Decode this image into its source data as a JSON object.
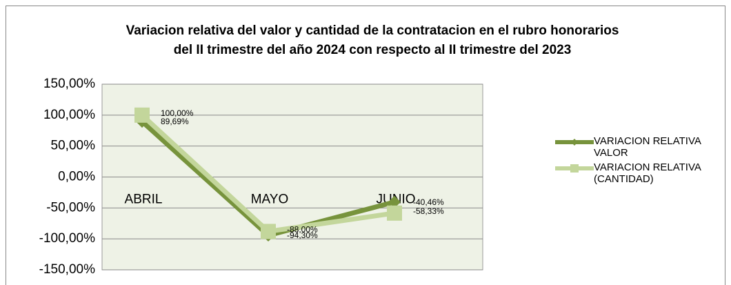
{
  "chart_data": {
    "type": "line",
    "title": [
      "Variacion relativa del valor y cantidad de la contratacion en el rubro honorarios",
      "del II trimestre del año 2024 con respecto al II trimestre del 2023"
    ],
    "categories": [
      "ABRIL",
      "MAYO",
      "JUNIO"
    ],
    "series": [
      {
        "name": "VARIACION RELATIVA VALOR",
        "color": "#77933c",
        "marker": "diamond",
        "values": [
          89.69,
          -94.3,
          -40.46
        ],
        "value_labels": [
          "89,69%",
          "-94,30%",
          "-40,46%"
        ]
      },
      {
        "name": "VARIACION RELATIVA (CANTIDAD)",
        "color": "#c3d69b",
        "marker": "square",
        "values": [
          100.0,
          -88.0,
          -58.33
        ],
        "value_labels": [
          "100,00%",
          "-88,00%",
          "-58,33%"
        ]
      }
    ],
    "ylim": [
      -150,
      150
    ],
    "yticks": [
      {
        "value": -150,
        "label": "-150,00%"
      },
      {
        "value": -100,
        "label": "-100,00%"
      },
      {
        "value": -50,
        "label": "-50,00%"
      },
      {
        "value": 0,
        "label": "0,00%"
      },
      {
        "value": 50,
        "label": "50,00%"
      },
      {
        "value": 100,
        "label": "100,00%"
      },
      {
        "value": 150,
        "label": "150,00%"
      }
    ],
    "grid": true,
    "legend": "right"
  }
}
